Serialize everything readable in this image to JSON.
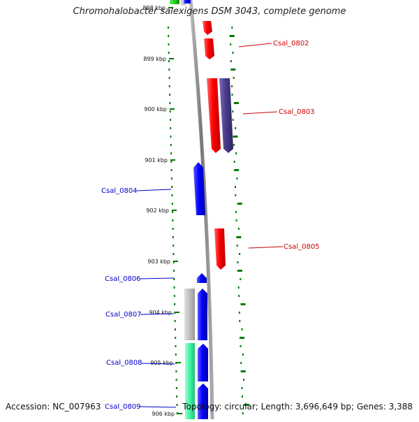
{
  "title": "Chromohalobacter salexigens DSM 3043, complete genome",
  "footer": {
    "accession": "Accession: NC_007963",
    "summary": "Topology: circular; Length: 3,696,649 bp; Genes: 3,388"
  },
  "colors": {
    "forward_cds": "#ff0000",
    "forward_cds_alt": "#4b3c8c",
    "reverse_cds": "#0000ff",
    "grey_feature": "#bdbdbd",
    "teal_feature": "#3ef2a0",
    "green_feature": "#22cc22",
    "gc_tick": "#007a00",
    "backbone": "#8a8a8a",
    "label_forward": "#cc0000",
    "label_reverse": "#0000cc"
  },
  "scale_ticks": [
    "898 kbp",
    "899 kbp",
    "900 kbp",
    "901 kbp",
    "902 kbp",
    "903 kbp",
    "904 kbp",
    "905 kbp",
    "906 kbp"
  ],
  "gene_labels": [
    "Csal_0802",
    "Csal_0803",
    "Csal_0804",
    "Csal_0805",
    "Csal_0806",
    "Csal_0807",
    "Csal_0808",
    "Csal_0809"
  ]
}
